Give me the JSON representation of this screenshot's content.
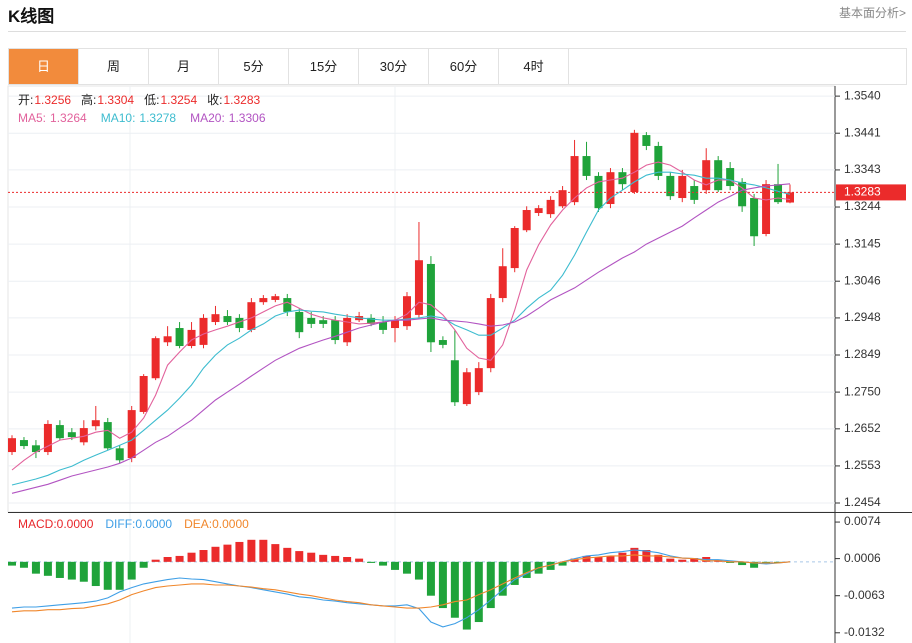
{
  "page": {
    "title": "K线图",
    "link": "基本面分析>",
    "tabs": [
      "日",
      "周",
      "月",
      "5分",
      "15分",
      "30分",
      "60分",
      "4时"
    ],
    "active_tab": 0
  },
  "chart_data": {
    "type": "candlestick",
    "info_labels": {
      "open": "开:",
      "high": "高:",
      "low": "低:",
      "close": "收:"
    },
    "up_color": "#eb2b2b",
    "down_color": "#1fa33a",
    "grid": true,
    "ylim": [
      1.243,
      1.3567
    ],
    "yticks": [
      {
        "value": 1.354,
        "label": "1.3540"
      },
      1.3441,
      1.3343,
      1.3244,
      1.3145,
      1.3046,
      1.2948,
      1.2849,
      {
        "value": 1.275,
        "label": "1.2750"
      },
      1.2652,
      1.2553,
      1.2454
    ],
    "open": [
      1.259,
      1.2622,
      1.2608,
      1.259,
      1.2662,
      1.2643,
      1.2616,
      1.2659,
      1.267,
      1.26,
      1.2574,
      1.2697,
      1.2787,
      1.2883,
      1.2921,
      1.2873,
      1.2876,
      1.2937,
      1.2953,
      1.2948,
      1.2916,
      1.299,
      1.2996,
      1.3001,
      1.2964,
      1.2948,
      1.2942,
      1.2942,
      1.2883,
      1.2942,
      1.2948,
      1.2937,
      1.2921,
      1.2926,
      1.2956,
      1.3092,
      1.2889,
      1.2835,
      1.2718,
      1.275,
      1.2814,
      1.3001,
      1.3081,
      1.3182,
      1.3228,
      1.3225,
      1.3246,
      1.3257,
      1.338,
      1.3327,
      1.3252,
      1.3337,
      1.3284,
      1.3436,
      1.3407,
      1.3327,
      1.3268,
      1.33,
      1.3289,
      1.3369,
      1.3348,
      1.3311,
      1.3268,
      1.3172,
      1.3305,
      1.3256
    ],
    "high": [
      1.2635,
      1.263,
      1.2622,
      1.2675,
      1.2675,
      1.2654,
      1.2675,
      1.2713,
      1.2681,
      1.2608,
      1.2713,
      1.2798,
      1.2899,
      1.2926,
      1.2937,
      1.2937,
      1.2958,
      1.298,
      1.2969,
      1.2958,
      1.3001,
      1.3009,
      1.3012,
      1.3012,
      1.2974,
      1.2964,
      1.2953,
      1.2953,
      1.2958,
      1.2964,
      1.2958,
      1.2953,
      1.2953,
      1.3017,
      1.3204,
      1.3113,
      1.2899,
      1.2916,
      1.2814,
      1.283,
      1.3012,
      1.3134,
      1.3193,
      1.3246,
      1.3249,
      1.3273,
      1.33,
      1.3423,
      1.3418,
      1.3337,
      1.3348,
      1.3348,
      1.345,
      1.3444,
      1.3418,
      1.3337,
      1.3343,
      1.3316,
      1.3401,
      1.338,
      1.3364,
      1.3321,
      1.3279,
      1.3316,
      1.3359,
      1.3304
    ],
    "low": [
      1.2582,
      1.2598,
      1.2574,
      1.2582,
      1.2622,
      1.2622,
      1.2608,
      1.2648,
      1.2595,
      1.256,
      1.2563,
      1.2692,
      1.2782,
      1.2873,
      1.2867,
      1.2867,
      1.2867,
      1.2929,
      1.2929,
      1.291,
      1.291,
      1.2983,
      1.299,
      1.2953,
      1.2894,
      1.2921,
      1.2921,
      1.2878,
      1.2873,
      1.2937,
      1.2926,
      1.2905,
      1.2883,
      1.2916,
      1.2948,
      1.2857,
      1.2867,
      1.2713,
      1.2713,
      1.2742,
      1.2803,
      1.299,
      1.307,
      1.3177,
      1.322,
      1.3215,
      1.3241,
      1.3249,
      1.3316,
      1.3231,
      1.3241,
      1.3289,
      1.3279,
      1.3396,
      1.3316,
      1.3263,
      1.3257,
      1.3252,
      1.3279,
      1.3284,
      1.3289,
      1.3231,
      1.314,
      1.3166,
      1.3252,
      1.3254
    ],
    "close": [
      1.2627,
      1.2606,
      1.259,
      1.2665,
      1.2627,
      1.263,
      1.2654,
      1.2675,
      1.26,
      1.2568,
      1.2702,
      1.2793,
      1.2894,
      1.2899,
      1.2873,
      1.2916,
      1.2948,
      1.2958,
      1.2937,
      1.2921,
      1.299,
      1.3001,
      1.3006,
      1.2964,
      1.291,
      1.2932,
      1.2932,
      1.2889,
      1.2948,
      1.2953,
      1.2932,
      1.2916,
      1.2942,
      1.3006,
      1.3102,
      1.2883,
      1.2876,
      1.2723,
      1.2803,
      1.2814,
      1.3001,
      1.3086,
      1.3188,
      1.3236,
      1.3241,
      1.3263,
      1.3289,
      1.338,
      1.3327,
      1.3241,
      1.3337,
      1.3305,
      1.3442,
      1.3407,
      1.3327,
      1.3273,
      1.3327,
      1.3263,
      1.3369,
      1.3289,
      1.33,
      1.3246,
      1.3166,
      1.3305,
      1.3257,
      1.3283
    ],
    "ma": [
      {
        "name": "MA5:",
        "color": "#e2629c",
        "values": [
          1.2542,
          1.2568,
          1.259,
          1.2606,
          1.2622,
          1.2627,
          1.2632,
          1.2643,
          1.2648,
          1.2627,
          1.2643,
          1.2681,
          1.2742,
          1.2822,
          1.2857,
          1.2889,
          1.2905,
          1.2916,
          1.2926,
          1.2937,
          1.2948,
          1.2964,
          1.298,
          1.299,
          1.2974,
          1.2958,
          1.2948,
          1.2942,
          1.2937,
          1.2932,
          1.2934,
          1.2937,
          1.2942,
          1.2958,
          1.299,
          1.2983,
          1.2956,
          1.2916,
          1.2867,
          1.2841,
          1.2835,
          1.2876,
          1.2969,
          1.3076,
          1.3143,
          1.3196,
          1.3236,
          1.3268,
          1.3295,
          1.3311,
          1.3316,
          1.3321,
          1.3337,
          1.3356,
          1.3364,
          1.3356,
          1.3337,
          1.3316,
          1.3303,
          1.3316,
          1.3316,
          1.3295,
          1.3268,
          1.3263,
          1.3268,
          1.3264
        ]
      },
      {
        "name": "MA10:",
        "color": "#3dbccf",
        "values": [
          1.2502,
          1.251,
          1.2518,
          1.2528,
          1.2542,
          1.2552,
          1.2568,
          1.2582,
          1.2595,
          1.2608,
          1.2622,
          1.2648,
          1.2675,
          1.2702,
          1.2734,
          1.2769,
          1.2814,
          1.2849,
          1.2876,
          1.2894,
          1.2916,
          1.2932,
          1.2953,
          1.2964,
          1.2969,
          1.2966,
          1.2964,
          1.2958,
          1.2953,
          1.2948,
          1.2945,
          1.2942,
          1.2942,
          1.2945,
          1.2948,
          1.2953,
          1.2948,
          1.2929,
          1.2916,
          1.2902,
          1.2902,
          1.2921,
          1.2942,
          1.2974,
          1.3001,
          1.3022,
          1.3062,
          1.3116,
          1.3177,
          1.3236,
          1.3268,
          1.3289,
          1.3311,
          1.3329,
          1.3337,
          1.3337,
          1.3332,
          1.3329,
          1.3321,
          1.3321,
          1.3316,
          1.3308,
          1.3303,
          1.3295,
          1.3286,
          1.3278
        ]
      },
      {
        "name": "MA20:",
        "color": "#b254c2",
        "values": [
          1.248,
          1.2488,
          1.2496,
          1.2504,
          1.2515,
          1.2526,
          1.2534,
          1.2542,
          1.255,
          1.256,
          1.2574,
          1.2595,
          1.2616,
          1.2632,
          1.2654,
          1.2675,
          1.2702,
          1.2729,
          1.275,
          1.2771,
          1.2793,
          1.2814,
          1.2835,
          1.2851,
          1.2867,
          1.2878,
          1.2889,
          1.2899,
          1.291,
          1.2921,
          1.2929,
          1.2937,
          1.2942,
          1.2942,
          1.2945,
          1.2948,
          1.2942,
          1.294,
          1.2937,
          1.2932,
          1.2926,
          1.2929,
          1.2937,
          1.2953,
          1.2974,
          1.2996,
          1.3012,
          1.3028,
          1.3049,
          1.307,
          1.3089,
          1.3108,
          1.3124,
          1.3145,
          1.3161,
          1.3177,
          1.3193,
          1.3215,
          1.3236,
          1.3257,
          1.3273,
          1.3289,
          1.3295,
          1.33,
          1.3303,
          1.3306
        ]
      }
    ],
    "macd": {
      "ylim": [
        -0.0151,
        0.0089
      ],
      "yticks": [
        0.0074,
        0.0006,
        -0.0063,
        -0.0132
      ],
      "histogram": {
        "name": "MACD:",
        "color": "#e8262a",
        "value_label": "0.0000",
        "values": [
          -0.0007,
          -0.0011,
          -0.0022,
          -0.0026,
          -0.003,
          -0.0033,
          -0.0037,
          -0.0045,
          -0.0052,
          -0.0052,
          -0.0033,
          -0.0011,
          0.0004,
          0.0009,
          0.0011,
          0.0017,
          0.0022,
          0.0028,
          0.0032,
          0.0037,
          0.0041,
          0.0041,
          0.0033,
          0.0026,
          0.002,
          0.0017,
          0.0013,
          0.0011,
          0.0009,
          0.0006,
          -0.0002,
          -0.0007,
          -0.0015,
          -0.0022,
          -0.0033,
          -0.0063,
          -0.0086,
          -0.0104,
          -0.0126,
          -0.0112,
          -0.0086,
          -0.0063,
          -0.0043,
          -0.003,
          -0.0022,
          -0.0015,
          -0.0007,
          0.0006,
          0.0011,
          0.0009,
          0.0011,
          0.0017,
          0.0026,
          0.0022,
          0.0013,
          0.0006,
          0.0004,
          0.0007,
          0.0009,
          0.0004,
          -0.0002,
          -0.0006,
          -0.0011,
          -0.0004,
          -0.0002,
          0
        ]
      },
      "lines": [
        {
          "name": "DIFF:",
          "color": "#3f9fe6",
          "value_label": "0.0000",
          "values": [
            -0.0086,
            -0.0084,
            -0.0084,
            -0.0082,
            -0.008,
            -0.0078,
            -0.0076,
            -0.0073,
            -0.0067,
            -0.0056,
            -0.0048,
            -0.0041,
            -0.0037,
            -0.0033,
            -0.003,
            -0.0032,
            -0.0033,
            -0.0037,
            -0.0041,
            -0.0045,
            -0.0048,
            -0.0052,
            -0.0056,
            -0.006,
            -0.0065,
            -0.0067,
            -0.0071,
            -0.0073,
            -0.0076,
            -0.0078,
            -0.008,
            -0.0082,
            -0.0082,
            -0.008,
            -0.0087,
            -0.0112,
            -0.0121,
            -0.0115,
            -0.0104,
            -0.0089,
            -0.0071,
            -0.0052,
            -0.0033,
            -0.0022,
            -0.0011,
            -0.0006,
            0,
            0.0006,
            0.0011,
            0.0013,
            0.0017,
            0.0019,
            0.0022,
            0.002,
            0.0017,
            0.0011,
            0.0007,
            0.0006,
            0.0004,
            0.0004,
            0.0002,
            0,
            -0.0002,
            -0.0004,
            -0.0002,
            0
          ]
        },
        {
          "name": "DEA:",
          "color": "#f0872c",
          "value_label": "0.0000",
          "values": [
            -0.0093,
            -0.0091,
            -0.0091,
            -0.0089,
            -0.0089,
            -0.0087,
            -0.0086,
            -0.0082,
            -0.0078,
            -0.0071,
            -0.0061,
            -0.0054,
            -0.0048,
            -0.0045,
            -0.0043,
            -0.0041,
            -0.0041,
            -0.0043,
            -0.0043,
            -0.0045,
            -0.0047,
            -0.005,
            -0.0052,
            -0.0056,
            -0.006,
            -0.0063,
            -0.0067,
            -0.0071,
            -0.0074,
            -0.0076,
            -0.008,
            -0.0082,
            -0.0084,
            -0.0086,
            -0.0086,
            -0.0084,
            -0.008,
            -0.0074,
            -0.0071,
            -0.0061,
            -0.0052,
            -0.0041,
            -0.003,
            -0.002,
            -0.0011,
            -0.0006,
            0,
            0.0004,
            0.0007,
            0.0009,
            0.0011,
            0.0011,
            0.0013,
            0.0011,
            0.0011,
            0.0009,
            0.0007,
            0.0006,
            0.0002,
            0.0002,
            0,
            0,
            -0.0002,
            -0.0002,
            -0.0002,
            0
          ]
        }
      ]
    }
  }
}
